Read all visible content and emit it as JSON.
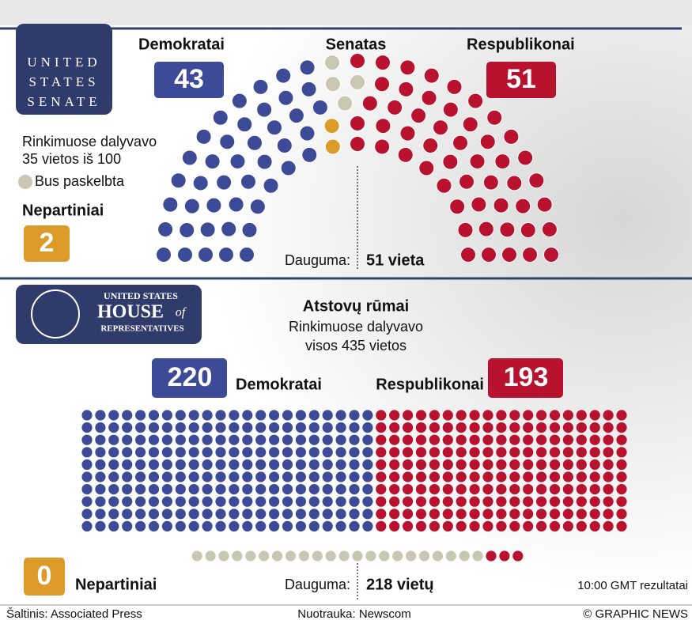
{
  "senate": {
    "logo": [
      "UNITED",
      "STATES",
      "SENATE"
    ],
    "title": "Senatas",
    "democrats": {
      "label": "Demokratai",
      "seats": 43
    },
    "republicans": {
      "label": "Respublikonai",
      "seats": 51
    },
    "independents": {
      "label": "Nepartiniai",
      "seats": 2
    },
    "pending": {
      "label": "Bus paskelbta",
      "seats": 4
    },
    "note": [
      "Rinkimuose dalyvavo",
      "35 vietos iš 100"
    ],
    "majority": {
      "label": "Dauguma:",
      "value": "51 vieta"
    }
  },
  "house": {
    "logo": [
      "UNITED STATES",
      "HOUSE",
      "of",
      "REPRESENTATIVES"
    ],
    "title": "Atstovų rūmai",
    "note": [
      "Rinkimuose dalyvavo",
      "visos 435 vietos"
    ],
    "democrats": {
      "label": "Demokratai",
      "seats": 220
    },
    "republicans": {
      "label": "Respublikonai",
      "seats": 193
    },
    "independents": {
      "label": "Nepartiniai",
      "seats": 0
    },
    "pending": {
      "seats": 22
    },
    "majority": {
      "label": "Dauguma:",
      "value": "218 vietų"
    },
    "timestamp": "10:00 GMT rezultatai"
  },
  "footer": {
    "source": "Šaltinis: Associated Press",
    "photo": "Nuotrauka: Newscom",
    "credit": "© GRAPHIC NEWS"
  },
  "colors": {
    "democrats": "#3d4a97",
    "republicans": "#b8122f",
    "independents": "#dc9a28",
    "pending": "#c9c6b2"
  }
}
